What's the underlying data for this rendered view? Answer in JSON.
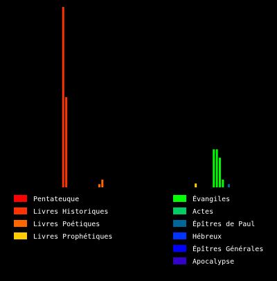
{
  "chart_data": {
    "type": "bar",
    "title": "",
    "xlabel": "",
    "ylabel": "",
    "ylim": [
      0,
      28
    ],
    "grid": false,
    "legend_position": "bottom",
    "series": [
      {
        "name": "Pentateuque",
        "color": "#ff0000",
        "values": [
          0,
          0,
          0,
          0,
          0
        ]
      },
      {
        "name": "Livres Historiques",
        "color": "#ff3300",
        "values": [
          28,
          14,
          0,
          0,
          0,
          0,
          0,
          0,
          0,
          0,
          0,
          0
        ]
      },
      {
        "name": "Livres Poétiques",
        "color": "#ff6600",
        "values": [
          0.5,
          1.2,
          0,
          0,
          0
        ]
      },
      {
        "name": "Livres Prophétiques",
        "color": "#ffcc00",
        "values": [
          0,
          0,
          0,
          0,
          0,
          0,
          0,
          0,
          0,
          0,
          0,
          0,
          0,
          0,
          0,
          0,
          0,
          0,
          0,
          0,
          0,
          0,
          0,
          0,
          0,
          0,
          0,
          0.6,
          0,
          0,
          0,
          0,
          0
        ]
      },
      {
        "name": "Évangiles",
        "color": "#00ff00",
        "values": [
          5.9,
          5.9,
          4.6,
          1.2
        ]
      },
      {
        "name": "Actes",
        "color": "#00cc66",
        "values": [
          0
        ]
      },
      {
        "name": "Épîtres de Paul",
        "color": "#006699",
        "values": [
          0.5,
          0,
          0,
          0,
          0,
          0,
          0,
          0,
          0,
          0,
          0,
          0,
          0,
          0
        ]
      },
      {
        "name": "Hébreux",
        "color": "#0033ff",
        "values": [
          0
        ]
      },
      {
        "name": "Épîtres Générales",
        "color": "#0000ff",
        "values": [
          0,
          0,
          0,
          0,
          0,
          0,
          0.6
        ]
      },
      {
        "name": "Apocalypse",
        "color": "#3300cc",
        "values": [
          0
        ]
      }
    ]
  }
}
